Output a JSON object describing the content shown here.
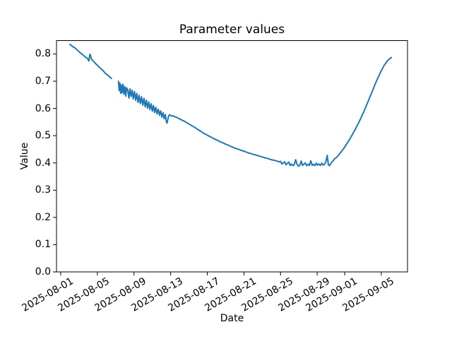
{
  "chart_data": {
    "type": "line",
    "title": "Parameter values",
    "xlabel": "Date",
    "ylabel": "Value",
    "grid": false,
    "legend": null,
    "line_color": "#1f77b4",
    "line_width": 2,
    "axis_color": "#000000",
    "background_color": "#ffffff",
    "x_unit": "days since 2025-08-01",
    "xlim_days": [
      -0.46,
      37.86
    ],
    "ylim": [
      0,
      0.849
    ],
    "x_tick_rotation_deg": 30,
    "x_ticks": [
      {
        "day": 0,
        "label": "2025-08-01"
      },
      {
        "day": 4,
        "label": "2025-08-05"
      },
      {
        "day": 8,
        "label": "2025-08-09"
      },
      {
        "day": 12,
        "label": "2025-08-13"
      },
      {
        "day": 16,
        "label": "2025-08-17"
      },
      {
        "day": 20,
        "label": "2025-08-21"
      },
      {
        "day": 24,
        "label": "2025-08-25"
      },
      {
        "day": 28,
        "label": "2025-08-29"
      },
      {
        "day": 31,
        "label": "2025-09-01"
      },
      {
        "day": 35,
        "label": "2025-09-05"
      }
    ],
    "y_ticks": [
      {
        "value": 0.0,
        "label": "0.0"
      },
      {
        "value": 0.1,
        "label": "0.1"
      },
      {
        "value": 0.2,
        "label": "0.2"
      },
      {
        "value": 0.3,
        "label": "0.3"
      },
      {
        "value": 0.4,
        "label": "0.4"
      },
      {
        "value": 0.5,
        "label": "0.5"
      },
      {
        "value": 0.6,
        "label": "0.6"
      },
      {
        "value": 0.7,
        "label": "0.7"
      },
      {
        "value": 0.8,
        "label": "0.8"
      }
    ],
    "series": [
      {
        "name": "parameter-values",
        "segments": [
          [
            [
              1.0,
              0.835
            ],
            [
              1.12,
              0.832
            ],
            [
              1.25,
              0.829
            ],
            [
              1.38,
              0.825
            ],
            [
              1.5,
              0.824
            ],
            [
              1.62,
              0.82
            ],
            [
              1.75,
              0.816
            ],
            [
              1.88,
              0.813
            ],
            [
              2.0,
              0.808
            ],
            [
              2.12,
              0.805
            ],
            [
              2.25,
              0.801
            ],
            [
              2.38,
              0.798
            ],
            [
              2.5,
              0.794
            ],
            [
              2.62,
              0.791
            ],
            [
              2.75,
              0.787
            ],
            [
              2.88,
              0.785
            ],
            [
              3.0,
              0.779
            ],
            [
              3.08,
              0.774
            ],
            [
              3.15,
              0.792
            ],
            [
              3.2,
              0.799
            ],
            [
              3.28,
              0.79
            ],
            [
              3.36,
              0.782
            ],
            [
              3.45,
              0.777
            ],
            [
              3.58,
              0.773
            ],
            [
              3.7,
              0.769
            ],
            [
              3.82,
              0.764
            ],
            [
              3.95,
              0.76
            ],
            [
              4.08,
              0.756
            ],
            [
              4.2,
              0.752
            ],
            [
              4.32,
              0.748
            ],
            [
              4.45,
              0.744
            ],
            [
              4.58,
              0.74
            ],
            [
              4.7,
              0.736
            ],
            [
              4.82,
              0.731
            ],
            [
              4.95,
              0.727
            ],
            [
              5.08,
              0.724
            ],
            [
              5.2,
              0.72
            ],
            [
              5.32,
              0.716
            ],
            [
              5.45,
              0.712
            ],
            [
              5.55,
              0.71
            ]
          ],
          [
            [
              6.3,
              0.7
            ],
            [
              6.38,
              0.666
            ],
            [
              6.46,
              0.693
            ],
            [
              6.54,
              0.655
            ],
            [
              6.62,
              0.686
            ],
            [
              6.7,
              0.658
            ],
            [
              6.8,
              0.689
            ],
            [
              6.9,
              0.652
            ],
            [
              7.0,
              0.68
            ],
            [
              7.1,
              0.645
            ],
            [
              7.2,
              0.676
            ],
            [
              7.32,
              0.668
            ],
            [
              7.44,
              0.638
            ],
            [
              7.56,
              0.672
            ],
            [
              7.68,
              0.644
            ],
            [
              7.8,
              0.667
            ],
            [
              7.92,
              0.635
            ],
            [
              8.05,
              0.662
            ],
            [
              8.18,
              0.63
            ],
            [
              8.31,
              0.655
            ],
            [
              8.44,
              0.622
            ],
            [
              8.57,
              0.648
            ],
            [
              8.7,
              0.618
            ],
            [
              8.83,
              0.643
            ],
            [
              8.96,
              0.612
            ],
            [
              9.09,
              0.637
            ],
            [
              9.22,
              0.606
            ],
            [
              9.35,
              0.63
            ],
            [
              9.48,
              0.601
            ],
            [
              9.61,
              0.624
            ],
            [
              9.74,
              0.596
            ],
            [
              9.87,
              0.617
            ],
            [
              10.0,
              0.59
            ],
            [
              10.13,
              0.611
            ],
            [
              10.26,
              0.585
            ],
            [
              10.39,
              0.604
            ],
            [
              10.52,
              0.58
            ],
            [
              10.65,
              0.597
            ],
            [
              10.78,
              0.575
            ],
            [
              10.91,
              0.591
            ],
            [
              11.04,
              0.568
            ],
            [
              11.17,
              0.585
            ],
            [
              11.3,
              0.562
            ],
            [
              11.42,
              0.578
            ],
            [
              11.52,
              0.553
            ],
            [
              11.6,
              0.546
            ],
            [
              11.68,
              0.558
            ],
            [
              11.76,
              0.57
            ],
            [
              11.88,
              0.577
            ],
            [
              12.0,
              0.574
            ],
            [
              12.3,
              0.572
            ],
            [
              12.6,
              0.568
            ],
            [
              12.9,
              0.563
            ],
            [
              13.2,
              0.558
            ],
            [
              13.5,
              0.553
            ],
            [
              13.8,
              0.547
            ],
            [
              14.1,
              0.541
            ],
            [
              14.4,
              0.535
            ],
            [
              14.7,
              0.529
            ],
            [
              15.0,
              0.522
            ],
            [
              15.3,
              0.516
            ],
            [
              15.6,
              0.509
            ],
            [
              15.9,
              0.504
            ],
            [
              16.2,
              0.498
            ],
            [
              16.5,
              0.493
            ],
            [
              16.8,
              0.488
            ],
            [
              17.1,
              0.483
            ],
            [
              17.4,
              0.478
            ],
            [
              17.7,
              0.474
            ],
            [
              18.0,
              0.469
            ],
            [
              18.3,
              0.465
            ],
            [
              18.6,
              0.46
            ],
            [
              18.9,
              0.456
            ],
            [
              19.2,
              0.452
            ],
            [
              19.5,
              0.449
            ],
            [
              19.8,
              0.445
            ],
            [
              20.1,
              0.442
            ],
            [
              20.4,
              0.438
            ],
            [
              20.7,
              0.435
            ],
            [
              21.0,
              0.432
            ],
            [
              21.3,
              0.429
            ],
            [
              21.6,
              0.426
            ],
            [
              21.9,
              0.423
            ],
            [
              22.2,
              0.42
            ],
            [
              22.5,
              0.417
            ],
            [
              22.8,
              0.414
            ],
            [
              23.1,
              0.411
            ],
            [
              23.4,
              0.409
            ],
            [
              23.7,
              0.406
            ],
            [
              23.85,
              0.404
            ],
            [
              24.0,
              0.406
            ],
            [
              24.15,
              0.396
            ],
            [
              24.3,
              0.4
            ],
            [
              24.45,
              0.404
            ],
            [
              24.6,
              0.393
            ],
            [
              24.75,
              0.399
            ],
            [
              24.9,
              0.403
            ],
            [
              25.05,
              0.391
            ],
            [
              25.2,
              0.396
            ],
            [
              25.35,
              0.39
            ],
            [
              25.5,
              0.394
            ],
            [
              25.65,
              0.412
            ],
            [
              25.8,
              0.395
            ],
            [
              25.95,
              0.388
            ],
            [
              26.1,
              0.391
            ],
            [
              26.25,
              0.407
            ],
            [
              26.4,
              0.391
            ],
            [
              26.55,
              0.395
            ],
            [
              26.7,
              0.4
            ],
            [
              26.85,
              0.39
            ],
            [
              27.0,
              0.395
            ],
            [
              27.15,
              0.391
            ],
            [
              27.3,
              0.408
            ],
            [
              27.45,
              0.391
            ],
            [
              27.6,
              0.395
            ],
            [
              27.75,
              0.39
            ],
            [
              27.9,
              0.399
            ],
            [
              28.05,
              0.392
            ],
            [
              28.2,
              0.396
            ],
            [
              28.35,
              0.391
            ],
            [
              28.5,
              0.399
            ],
            [
              28.65,
              0.392
            ],
            [
              28.8,
              0.395
            ],
            [
              28.95,
              0.404
            ],
            [
              29.1,
              0.428
            ],
            [
              29.22,
              0.393
            ],
            [
              29.35,
              0.39
            ],
            [
              29.5,
              0.399
            ],
            [
              29.65,
              0.404
            ],
            [
              29.8,
              0.411
            ],
            [
              29.95,
              0.417
            ],
            [
              30.1,
              0.42
            ],
            [
              30.25,
              0.426
            ],
            [
              30.4,
              0.431
            ],
            [
              30.55,
              0.438
            ],
            [
              30.7,
              0.444
            ],
            [
              30.85,
              0.451
            ],
            [
              31.0,
              0.458
            ],
            [
              31.15,
              0.466
            ],
            [
              31.3,
              0.474
            ],
            [
              31.45,
              0.482
            ],
            [
              31.6,
              0.49
            ],
            [
              31.75,
              0.499
            ],
            [
              31.9,
              0.508
            ],
            [
              32.05,
              0.517
            ],
            [
              32.2,
              0.526
            ],
            [
              32.35,
              0.536
            ],
            [
              32.5,
              0.546
            ],
            [
              32.65,
              0.556
            ],
            [
              32.8,
              0.567
            ],
            [
              32.95,
              0.578
            ],
            [
              33.1,
              0.589
            ],
            [
              33.25,
              0.601
            ],
            [
              33.4,
              0.613
            ],
            [
              33.55,
              0.625
            ],
            [
              33.7,
              0.637
            ],
            [
              33.85,
              0.649
            ],
            [
              34.0,
              0.662
            ],
            [
              34.15,
              0.674
            ],
            [
              34.3,
              0.687
            ],
            [
              34.45,
              0.699
            ],
            [
              34.6,
              0.71
            ],
            [
              34.75,
              0.721
            ],
            [
              34.9,
              0.732
            ],
            [
              35.05,
              0.742
            ],
            [
              35.2,
              0.751
            ],
            [
              35.35,
              0.76
            ],
            [
              35.5,
              0.767
            ],
            [
              35.65,
              0.774
            ],
            [
              35.8,
              0.779
            ],
            [
              35.95,
              0.784
            ],
            [
              36.1,
              0.787
            ]
          ]
        ]
      }
    ]
  }
}
